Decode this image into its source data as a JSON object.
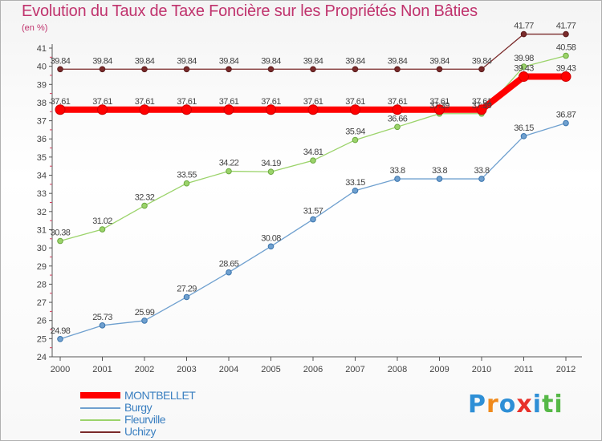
{
  "chart_data": {
    "type": "line",
    "title": "Evolution du Taux de Taxe Foncière sur les Propriétés Non Bâties",
    "ylabel": "(en %)",
    "ylim": [
      24,
      41
    ],
    "yticks": [
      24,
      25,
      26,
      27,
      28,
      29,
      30,
      31,
      32,
      33,
      34,
      35,
      36,
      37,
      38,
      39,
      40,
      41
    ],
    "categories": [
      "2000",
      "2001",
      "2002",
      "2003",
      "2004",
      "2005",
      "2006",
      "2007",
      "2008",
      "2009",
      "2010",
      "2011",
      "2012"
    ],
    "series": [
      {
        "name": "MONTBELLET",
        "color": "#ff0000",
        "values": [
          37.61,
          37.61,
          37.61,
          37.61,
          37.61,
          37.61,
          37.61,
          37.61,
          37.61,
          37.61,
          37.61,
          39.43,
          39.43
        ],
        "labels": [
          "37.61",
          "37.61",
          "37.61",
          "37.61",
          "37.61",
          "37.61",
          "37.61",
          "37.61",
          "37.61",
          "37.61",
          "37.61",
          "39.43",
          "39.43"
        ]
      },
      {
        "name": "Burgy",
        "color": "#6fa0cf",
        "values": [
          24.98,
          25.73,
          25.99,
          27.29,
          28.65,
          30.08,
          31.57,
          33.15,
          33.8,
          33.8,
          33.8,
          36.15,
          36.87
        ],
        "labels": [
          "24.98",
          "25.73",
          "25.99",
          "27.29",
          "28.65",
          "30.08",
          "31.57",
          "33.15",
          "33.8",
          "33.8",
          "33.8",
          "36.15",
          "36.87"
        ]
      },
      {
        "name": "Fleurville",
        "color": "#9bd36a",
        "values": [
          30.38,
          31.02,
          32.32,
          33.55,
          34.22,
          34.19,
          34.81,
          35.94,
          36.66,
          37.39,
          37.39,
          39.98,
          40.58
        ],
        "labels": [
          "30.38",
          "31.02",
          "32.32",
          "33.55",
          "34.22",
          "34.19",
          "34.81",
          "35.94",
          "36.66",
          "37.39",
          "37.39",
          "39.98",
          "40.58"
        ]
      },
      {
        "name": "Uchizy",
        "color": "#7a2a2a",
        "values": [
          39.84,
          39.84,
          39.84,
          39.84,
          39.84,
          39.84,
          39.84,
          39.84,
          39.84,
          39.84,
          39.84,
          41.77,
          41.77
        ],
        "labels": [
          "39.84",
          "39.84",
          "39.84",
          "39.84",
          "39.84",
          "39.84",
          "39.84",
          "39.84",
          "39.84",
          "39.84",
          "39.84",
          "41.77",
          "41.77"
        ]
      }
    ],
    "grid": false,
    "legend": "bottom-left"
  },
  "brand": {
    "letters": [
      "P",
      "r",
      "o",
      "x",
      "i",
      "t",
      "i"
    ],
    "colors": [
      "#2e8fd6",
      "#f08a1c",
      "#2e8fd6",
      "#e8312a",
      "#2e8fd6",
      "#56b847",
      "#56b847"
    ]
  }
}
